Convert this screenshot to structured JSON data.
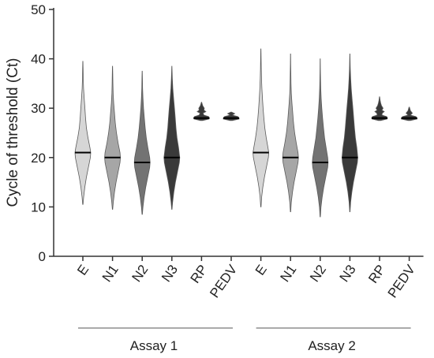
{
  "chart_data": {
    "type": "violin",
    "title": "",
    "ylabel": "Cycle of threshold (Ct)",
    "xlabel": "",
    "ylim": [
      0,
      50
    ],
    "yticks": [
      0,
      10,
      20,
      30,
      40,
      50
    ],
    "grid": false,
    "categories": [
      "E",
      "N1",
      "N2",
      "N3",
      "RP",
      "PEDV",
      "E",
      "N1",
      "N2",
      "N3",
      "RP",
      "PEDV"
    ],
    "groups": [
      {
        "name": "Assay 1",
        "start": 0,
        "end": 5
      },
      {
        "name": "Assay 2",
        "start": 6,
        "end": 11
      }
    ],
    "colors": {
      "E": "#d6d6d6",
      "N1": "#a6a6a6",
      "N2": "#737373",
      "N3": "#3a3a3a",
      "RP": "#3a3a3a",
      "PEDV": "#3a3a3a",
      "outline": "#5a5a5a",
      "median": "#000000"
    },
    "series": [
      {
        "category": "E",
        "group": "Assay 1",
        "min": 10.5,
        "max": 39.5,
        "median": 21,
        "widths": [
          [
            10.5,
            0.02
          ],
          [
            12,
            0.1
          ],
          [
            14,
            0.25
          ],
          [
            16,
            0.45
          ],
          [
            18,
            0.7
          ],
          [
            20,
            0.95
          ],
          [
            21,
            1.0
          ],
          [
            22,
            0.9
          ],
          [
            24,
            0.65
          ],
          [
            26,
            0.45
          ],
          [
            28,
            0.34
          ],
          [
            30,
            0.26
          ],
          [
            32,
            0.17
          ],
          [
            34,
            0.09
          ],
          [
            36,
            0.05
          ],
          [
            38,
            0.03
          ],
          [
            39.5,
            0.01
          ]
        ]
      },
      {
        "category": "N1",
        "group": "Assay 1",
        "min": 9.5,
        "max": 38.5,
        "median": 20,
        "widths": [
          [
            9.5,
            0.02
          ],
          [
            11,
            0.1
          ],
          [
            13,
            0.25
          ],
          [
            15,
            0.45
          ],
          [
            17,
            0.7
          ],
          [
            19,
            0.95
          ],
          [
            20,
            1.0
          ],
          [
            21,
            0.95
          ],
          [
            23,
            0.7
          ],
          [
            25,
            0.5
          ],
          [
            27,
            0.35
          ],
          [
            29,
            0.25
          ],
          [
            31,
            0.15
          ],
          [
            33,
            0.08
          ],
          [
            35,
            0.05
          ],
          [
            37,
            0.03
          ],
          [
            38.5,
            0.01
          ]
        ]
      },
      {
        "category": "N2",
        "group": "Assay 1",
        "min": 8.5,
        "max": 37.5,
        "median": 19,
        "widths": [
          [
            8.5,
            0.02
          ],
          [
            10,
            0.1
          ],
          [
            12,
            0.25
          ],
          [
            14,
            0.45
          ],
          [
            16,
            0.7
          ],
          [
            18,
            0.95
          ],
          [
            19,
            1.0
          ],
          [
            20,
            0.95
          ],
          [
            22,
            0.72
          ],
          [
            24,
            0.52
          ],
          [
            26,
            0.38
          ],
          [
            28,
            0.27
          ],
          [
            30,
            0.17
          ],
          [
            32,
            0.1
          ],
          [
            34,
            0.05
          ],
          [
            36,
            0.03
          ],
          [
            37.5,
            0.01
          ]
        ]
      },
      {
        "category": "N3",
        "group": "Assay 1",
        "min": 9.5,
        "max": 38.5,
        "median": 20,
        "widths": [
          [
            9.5,
            0.02
          ],
          [
            11,
            0.1
          ],
          [
            13,
            0.25
          ],
          [
            15,
            0.45
          ],
          [
            17,
            0.7
          ],
          [
            19,
            0.95
          ],
          [
            20,
            1.0
          ],
          [
            22,
            0.85
          ],
          [
            24,
            0.65
          ],
          [
            26,
            0.52
          ],
          [
            28,
            0.43
          ],
          [
            30,
            0.33
          ],
          [
            32,
            0.22
          ],
          [
            34,
            0.12
          ],
          [
            36,
            0.06
          ],
          [
            38.5,
            0.01
          ]
        ]
      },
      {
        "category": "RP",
        "group": "Assay 1",
        "min": 27.5,
        "max": 31.2,
        "median": 28,
        "widths": [
          [
            27.5,
            0.15
          ],
          [
            27.8,
            0.95
          ],
          [
            28,
            1.0
          ],
          [
            28.3,
            0.9
          ],
          [
            28.6,
            0.3
          ],
          [
            29,
            0.18
          ],
          [
            29.3,
            0.55
          ],
          [
            29.6,
            0.3
          ],
          [
            30,
            0.35
          ],
          [
            30.5,
            0.15
          ],
          [
            31.2,
            0.02
          ]
        ]
      },
      {
        "category": "PEDV",
        "group": "Assay 1",
        "min": 27.5,
        "max": 29.2,
        "median": 28,
        "widths": [
          [
            27.5,
            0.15
          ],
          [
            27.8,
            1.0
          ],
          [
            28,
            1.0
          ],
          [
            28.3,
            0.85
          ],
          [
            28.6,
            0.15
          ],
          [
            28.9,
            0.45
          ],
          [
            29.2,
            0.05
          ]
        ]
      },
      {
        "category": "E",
        "group": "Assay 2",
        "min": 10,
        "max": 42,
        "median": 21,
        "widths": [
          [
            10,
            0.02
          ],
          [
            12,
            0.1
          ],
          [
            14,
            0.25
          ],
          [
            16,
            0.45
          ],
          [
            18,
            0.7
          ],
          [
            20,
            0.95
          ],
          [
            21,
            1.0
          ],
          [
            22,
            0.9
          ],
          [
            24,
            0.68
          ],
          [
            26,
            0.5
          ],
          [
            28,
            0.38
          ],
          [
            30,
            0.28
          ],
          [
            32,
            0.2
          ],
          [
            34,
            0.13
          ],
          [
            36,
            0.08
          ],
          [
            38,
            0.05
          ],
          [
            40,
            0.03
          ],
          [
            42,
            0.01
          ]
        ]
      },
      {
        "category": "N1",
        "group": "Assay 2",
        "min": 9,
        "max": 41,
        "median": 20,
        "widths": [
          [
            9,
            0.02
          ],
          [
            11,
            0.1
          ],
          [
            13,
            0.25
          ],
          [
            15,
            0.45
          ],
          [
            17,
            0.7
          ],
          [
            19,
            0.95
          ],
          [
            20,
            1.0
          ],
          [
            21,
            0.95
          ],
          [
            23,
            0.72
          ],
          [
            25,
            0.52
          ],
          [
            27,
            0.38
          ],
          [
            29,
            0.28
          ],
          [
            31,
            0.18
          ],
          [
            33,
            0.1
          ],
          [
            35,
            0.06
          ],
          [
            37,
            0.04
          ],
          [
            39,
            0.02
          ],
          [
            41,
            0.01
          ]
        ]
      },
      {
        "category": "N2",
        "group": "Assay 2",
        "min": 8,
        "max": 40,
        "median": 19,
        "widths": [
          [
            8,
            0.02
          ],
          [
            10,
            0.1
          ],
          [
            12,
            0.25
          ],
          [
            14,
            0.45
          ],
          [
            16,
            0.7
          ],
          [
            18,
            0.95
          ],
          [
            19,
            1.0
          ],
          [
            20,
            0.95
          ],
          [
            22,
            0.75
          ],
          [
            24,
            0.55
          ],
          [
            26,
            0.42
          ],
          [
            28,
            0.3
          ],
          [
            30,
            0.2
          ],
          [
            32,
            0.12
          ],
          [
            34,
            0.07
          ],
          [
            36,
            0.04
          ],
          [
            38,
            0.02
          ],
          [
            40,
            0.01
          ]
        ]
      },
      {
        "category": "N3",
        "group": "Assay 2",
        "min": 9,
        "max": 41,
        "median": 20,
        "widths": [
          [
            9,
            0.02
          ],
          [
            11,
            0.1
          ],
          [
            13,
            0.25
          ],
          [
            15,
            0.45
          ],
          [
            17,
            0.7
          ],
          [
            19,
            0.95
          ],
          [
            20,
            1.0
          ],
          [
            22,
            0.88
          ],
          [
            24,
            0.7
          ],
          [
            26,
            0.58
          ],
          [
            28,
            0.48
          ],
          [
            30,
            0.38
          ],
          [
            32,
            0.27
          ],
          [
            34,
            0.17
          ],
          [
            36,
            0.1
          ],
          [
            38,
            0.05
          ],
          [
            41,
            0.01
          ]
        ]
      },
      {
        "category": "RP",
        "group": "Assay 2",
        "min": 27.5,
        "max": 32.3,
        "median": 28,
        "widths": [
          [
            27.5,
            0.15
          ],
          [
            27.8,
            0.95
          ],
          [
            28,
            1.0
          ],
          [
            28.3,
            0.9
          ],
          [
            28.6,
            0.3
          ],
          [
            29,
            0.35
          ],
          [
            29.3,
            0.6
          ],
          [
            29.6,
            0.3
          ],
          [
            30,
            0.45
          ],
          [
            30.5,
            0.25
          ],
          [
            31,
            0.15
          ],
          [
            31.6,
            0.07
          ],
          [
            32.3,
            0.02
          ]
        ]
      },
      {
        "category": "PEDV",
        "group": "Assay 2",
        "min": 27.5,
        "max": 30.2,
        "median": 28,
        "widths": [
          [
            27.5,
            0.15
          ],
          [
            27.8,
            1.0
          ],
          [
            28,
            1.0
          ],
          [
            28.3,
            0.85
          ],
          [
            28.6,
            0.15
          ],
          [
            29,
            0.4
          ],
          [
            29.5,
            0.15
          ],
          [
            30.2,
            0.03
          ]
        ]
      }
    ]
  }
}
